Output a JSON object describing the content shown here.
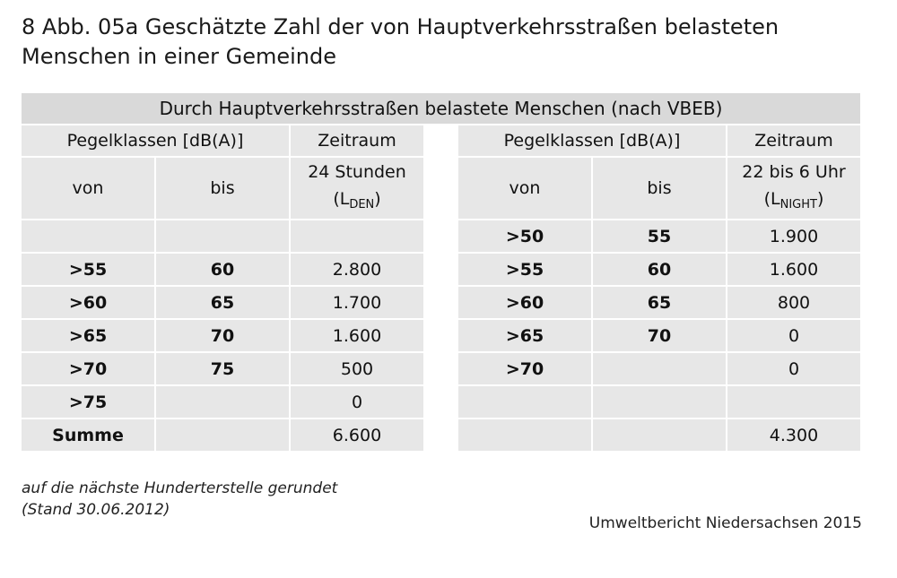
{
  "title": {
    "line1": "8 Abb. 05a Geschätzte Zahl der von Hauptverkehrsstraßen belasteten",
    "line2": "Menschen in einer Gemeinde"
  },
  "table": {
    "caption": "Durch Hauptverkehrsstraßen belastete Menschen (nach VBEB)",
    "left": {
      "pegel_header": "Pegelklassen [dB(A)]",
      "zeitraum_header": "Zeitraum",
      "von": "von",
      "bis": "bis",
      "period_line1": "24 Stunden",
      "period_open": "(L",
      "period_sub": "DEN",
      "period_close": ")",
      "rows": [
        {
          "von": "",
          "bis": "",
          "value": ""
        },
        {
          "von": ">55",
          "bis": "60",
          "value": "2.800"
        },
        {
          "von": ">60",
          "bis": "65",
          "value": "1.700"
        },
        {
          "von": ">65",
          "bis": "70",
          "value": "1.600"
        },
        {
          "von": ">70",
          "bis": "75",
          "value": "500"
        },
        {
          "von": ">75",
          "bis": "",
          "value": "0"
        },
        {
          "von": "Summe",
          "bis": "",
          "value": "6.600"
        }
      ]
    },
    "right": {
      "pegel_header": "Pegelklassen [dB(A)]",
      "zeitraum_header": "Zeitraum",
      "von": "von",
      "bis": "bis",
      "period_line1": "22 bis 6 Uhr",
      "period_open": "(L",
      "period_sub": "NIGHT",
      "period_close": ")",
      "rows": [
        {
          "von": ">50",
          "bis": "55",
          "value": "1.900"
        },
        {
          "von": ">55",
          "bis": "60",
          "value": "1.600"
        },
        {
          "von": ">60",
          "bis": "65",
          "value": "800"
        },
        {
          "von": ">65",
          "bis": "70",
          "value": "0"
        },
        {
          "von": ">70",
          "bis": "",
          "value": "0"
        },
        {
          "von": "",
          "bis": "",
          "value": ""
        },
        {
          "von": "",
          "bis": "",
          "value": "4.300"
        }
      ]
    }
  },
  "footnote": {
    "line1": "auf die nächste Hunderterstelle gerundet",
    "line2": "(Stand 30.06.2012)"
  },
  "source": "Umweltbericht Niedersachsen 2015"
}
